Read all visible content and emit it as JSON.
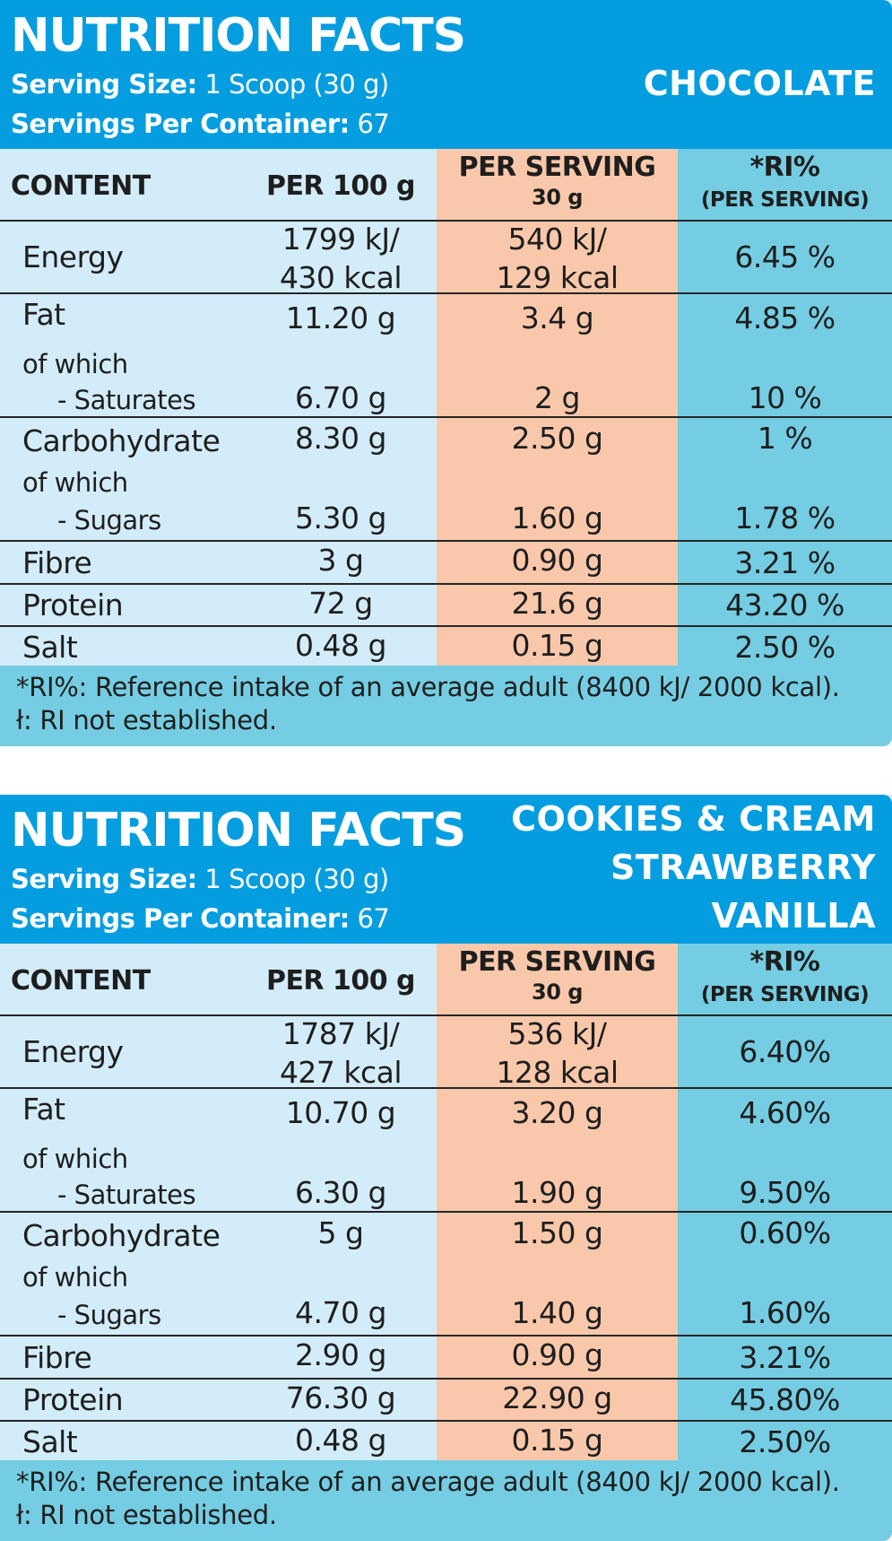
{
  "panels": [
    {
      "title": "NUTRITION FACTS",
      "serving_size_label": "Serving Size:",
      "serving_size_value": "1 Scoop (30 g)",
      "servings_label": "Servings Per Container:",
      "servings_value": "67",
      "flavours": [
        "CHOCOLATE"
      ],
      "headers": {
        "content": "CONTENT",
        "per100": "PER 100 g",
        "per_serving": "PER SERVING",
        "per_serving_sub": "30 g",
        "ri": "*RI%",
        "ri_sub": "(PER SERVING)"
      },
      "rows": {
        "energy": {
          "label": "Energy",
          "per100": [
            "1799 kJ/",
            "430 kcal"
          ],
          "serving": [
            "540 kJ/",
            "129 kcal"
          ],
          "ri": "6.45 %"
        },
        "fat": {
          "label": "Fat",
          "per100": "11.20 g",
          "serving": "3.4 g",
          "ri": "4.85 %",
          "of_which": "of which",
          "sub_label": "- Saturates",
          "sub_per100": "6.70 g",
          "sub_serving": "2 g",
          "sub_ri": "10 %"
        },
        "carb": {
          "label": "Carbohydrate",
          "per100": "8.30 g",
          "serving": "2.50 g",
          "ri": "1 %",
          "of_which": "of which",
          "sub_label": "- Sugars",
          "sub_per100": "5.30 g",
          "sub_serving": "1.60 g",
          "sub_ri": "1.78 %"
        },
        "fibre": {
          "label": "Fibre",
          "per100": "3 g",
          "serving": "0.90 g",
          "ri": "3.21 %"
        },
        "protein": {
          "label": "Protein",
          "per100": "72 g",
          "serving": "21.6 g",
          "ri": "43.20 %"
        },
        "salt": {
          "label": "Salt",
          "per100": "0.48 g",
          "serving": "0.15 g",
          "ri": "2.50 %"
        }
      },
      "footnotes": [
        "*RI%:  Reference intake of an average adult (8400 kJ/ 2000 kcal).",
        "ł: RI not established."
      ]
    },
    {
      "title": "NUTRITION FACTS",
      "serving_size_label": "Serving Size:",
      "serving_size_value": "1 Scoop (30 g)",
      "servings_label": "Servings Per Container:",
      "servings_value": "67",
      "flavours": [
        "COOKIES & CREAM",
        "STRAWBERRY",
        "VANILLA"
      ],
      "headers": {
        "content": "CONTENT",
        "per100": "PER 100 g",
        "per_serving": "PER SERVING",
        "per_serving_sub": "30 g",
        "ri": "*RI%",
        "ri_sub": "(PER SERVING)"
      },
      "rows": {
        "energy": {
          "label": "Energy",
          "per100": [
            "1787 kJ/",
            "427 kcal"
          ],
          "serving": [
            "536 kJ/",
            "128 kcal"
          ],
          "ri": "6.40%"
        },
        "fat": {
          "label": "Fat",
          "per100": "10.70 g",
          "serving": "3.20 g",
          "ri": "4.60%",
          "of_which": "of which",
          "sub_label": "- Saturates",
          "sub_per100": "6.30 g",
          "sub_serving": "1.90 g",
          "sub_ri": "9.50%"
        },
        "carb": {
          "label": "Carbohydrate",
          "per100": "5 g",
          "serving": "1.50 g",
          "ri": "0.60%",
          "of_which": "of which",
          "sub_label": "- Sugars",
          "sub_per100": "4.70 g",
          "sub_serving": "1.40 g",
          "sub_ri": "1.60%"
        },
        "fibre": {
          "label": "Fibre",
          "per100": "2.90 g",
          "serving": "0.90 g",
          "ri": "3.21%"
        },
        "protein": {
          "label": "Protein",
          "per100": "76.30 g",
          "serving": "22.90 g",
          "ri": "45.80%"
        },
        "salt": {
          "label": "Salt",
          "per100": "0.48 g",
          "serving": "0.15 g",
          "ri": "2.50%"
        }
      },
      "footnotes": [
        "*RI%:  Reference intake of an average adult (8400 kJ/ 2000 kcal).",
        "ł: RI not established."
      ]
    }
  ],
  "colors": {
    "header_blue": "#049de0",
    "content_bg": "#d3ecf9",
    "per_serving_bg": "#f9c8aa",
    "ri_bg": "#74cde2"
  }
}
